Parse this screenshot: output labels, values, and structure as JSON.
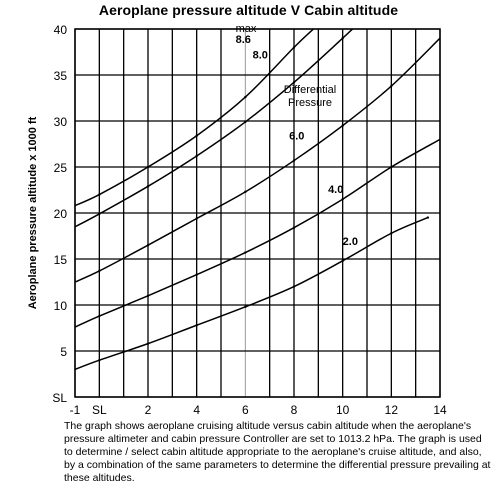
{
  "chart_data": {
    "type": "line",
    "title": "Aeroplane pressure altitude V Cabin altitude",
    "xlabel": "",
    "ylabel": "Aeroplane pressure altitude x 1000 ft",
    "xlim": [
      -1,
      14
    ],
    "ylim": [
      0,
      40
    ],
    "x_ticks": [
      {
        "value": -1,
        "label": "-1"
      },
      {
        "value": 0,
        "label": "SL"
      },
      {
        "value": 2,
        "label": "2"
      },
      {
        "value": 4,
        "label": "4"
      },
      {
        "value": 6,
        "label": "6"
      },
      {
        "value": 8,
        "label": "8"
      },
      {
        "value": 10,
        "label": "10"
      },
      {
        "value": 12,
        "label": "12"
      },
      {
        "value": 14,
        "label": "14"
      }
    ],
    "y_ticks": [
      {
        "value": 0,
        "label": "SL"
      },
      {
        "value": 5,
        "label": "5"
      },
      {
        "value": 10,
        "label": "10"
      },
      {
        "value": 15,
        "label": "15"
      },
      {
        "value": 20,
        "label": "20"
      },
      {
        "value": 25,
        "label": "25"
      },
      {
        "value": 30,
        "label": "30"
      },
      {
        "value": 35,
        "label": "35"
      },
      {
        "value": 40,
        "label": "40"
      }
    ],
    "grid": true,
    "highlight_x": 6,
    "legend_title": "Differential\nPressure",
    "series": [
      {
        "name": "2.0",
        "x": [
          -1,
          0,
          2,
          4,
          6,
          8,
          10,
          12,
          13.5
        ],
        "y": [
          3.0,
          4.0,
          5.8,
          7.8,
          9.8,
          12.0,
          14.8,
          17.8,
          19.5
        ]
      },
      {
        "name": "4.0",
        "x": [
          -1,
          0,
          2,
          4,
          6,
          8,
          10,
          12,
          14
        ],
        "y": [
          7.6,
          8.8,
          11.0,
          13.3,
          15.7,
          18.4,
          21.5,
          25.0,
          28.0
        ]
      },
      {
        "name": "6.0",
        "x": [
          -1,
          0,
          2,
          4,
          6,
          8,
          10,
          12,
          14
        ],
        "y": [
          12.5,
          13.7,
          16.5,
          19.4,
          22.3,
          25.7,
          29.5,
          33.8,
          39.0
        ]
      },
      {
        "name": "8.0",
        "x": [
          -1,
          0,
          2,
          4,
          6,
          8,
          10,
          11.2
        ],
        "y": [
          18.5,
          19.9,
          22.9,
          26.2,
          29.9,
          34.2,
          39.0,
          42.0
        ]
      },
      {
        "name": "8.6",
        "x": [
          -1,
          0,
          2,
          4,
          6,
          8,
          8.8
        ],
        "y": [
          20.8,
          22.0,
          25.0,
          28.4,
          32.6,
          38.0,
          40.0
        ]
      }
    ],
    "curve_label_prefix": "max"
  },
  "caption": "The graph shows aeroplane cruising altitude versus cabin altitude when the aeroplane's pressure altimeter and cabin pressure Controller are set to 1013.2 hPa. The graph is used to determine / select cabin altitude appropriate to the aeroplane's cruise altitude, and also, by a combination of the same parameters to determine the differential pressure prevailing at these altitudes."
}
